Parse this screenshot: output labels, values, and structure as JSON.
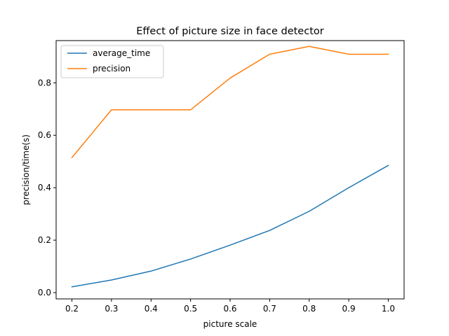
{
  "chart_data": {
    "type": "line",
    "title": "Effect of picture size in face detector",
    "xlabel": "picture scale",
    "ylabel": "precision/time(s)",
    "x": [
      0.2,
      0.3,
      0.4,
      0.5,
      0.6,
      0.7,
      0.8,
      0.9,
      1.0
    ],
    "xlim": [
      0.16,
      1.04
    ],
    "ylim": [
      -0.024,
      0.961
    ],
    "xticks": [
      "0.2",
      "0.3",
      "0.4",
      "0.5",
      "0.6",
      "0.7",
      "0.8",
      "0.9",
      "1.0"
    ],
    "yticks": [
      "0.0",
      "0.2",
      "0.4",
      "0.6",
      "0.8"
    ],
    "grid": false,
    "legend_position": "top-left",
    "series": [
      {
        "name": "average_time",
        "color": "#1f77b4",
        "values": [
          0.022,
          0.048,
          0.082,
          0.128,
          0.181,
          0.237,
          0.31,
          0.4,
          0.485
        ]
      },
      {
        "name": "precision",
        "color": "#ff7f0e",
        "values": [
          0.515,
          0.697,
          0.697,
          0.697,
          0.818,
          0.909,
          0.939,
          0.909,
          0.909
        ]
      }
    ]
  }
}
